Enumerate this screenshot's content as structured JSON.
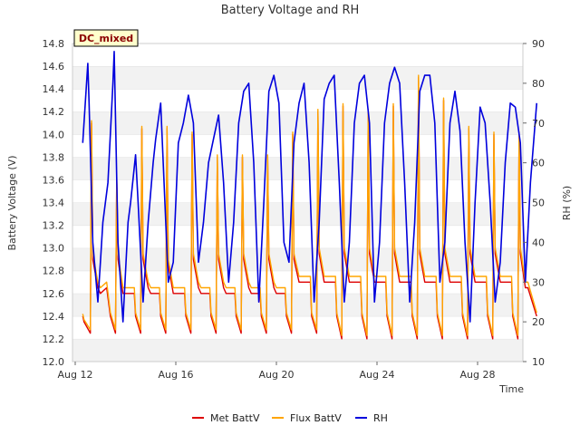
{
  "chart_data": {
    "type": "line",
    "title": "Battery Voltage and RH",
    "xlabel": "Time",
    "ylabel": "Battery Voltage (V)",
    "y2label": "RH (%)",
    "badge": "DC_mixed",
    "x_range_days": [
      0,
      18.6
    ],
    "ylim": [
      12.0,
      14.8
    ],
    "y2lim": [
      10,
      90
    ],
    "y_ticks": [
      "12.0",
      "12.2",
      "12.4",
      "12.6",
      "12.8",
      "13.0",
      "13.2",
      "13.4",
      "13.6",
      "13.8",
      "14.0",
      "14.2",
      "14.4",
      "14.6",
      "14.8"
    ],
    "y2_ticks": [
      "10",
      "20",
      "30",
      "40",
      "50",
      "60",
      "70",
      "80",
      "90"
    ],
    "x_ticks": [
      {
        "day": 0,
        "label": "Aug 12"
      },
      {
        "day": 4,
        "label": "Aug 16"
      },
      {
        "day": 8,
        "label": "Aug 20"
      },
      {
        "day": 12,
        "label": "Aug 24"
      },
      {
        "day": 16,
        "label": "Aug 28"
      }
    ],
    "series": [
      {
        "name": "Met BattV",
        "color": "#dd0000",
        "axis": "left",
        "x": [
          0.3,
          0.35,
          0.6,
          0.65,
          0.7,
          0.9,
          1.0,
          1.25,
          1.4,
          1.6,
          1.65,
          1.7,
          1.9,
          2.0,
          2.35,
          2.4,
          2.6,
          2.65,
          2.7,
          2.9,
          3.0,
          3.35,
          3.4,
          3.6,
          3.65,
          3.7,
          3.9,
          4.0,
          4.35,
          4.4,
          4.6,
          4.65,
          4.7,
          4.9,
          5.0,
          5.35,
          5.4,
          5.6,
          5.65,
          5.7,
          5.9,
          6.0,
          6.35,
          6.4,
          6.6,
          6.65,
          6.7,
          6.9,
          7.0,
          7.35,
          7.4,
          7.6,
          7.65,
          7.7,
          7.9,
          8.0,
          8.35,
          8.4,
          8.6,
          8.65,
          8.7,
          8.9,
          9.0,
          9.35,
          9.4,
          9.6,
          9.65,
          9.7,
          9.9,
          10.0,
          10.35,
          10.4,
          10.6,
          10.65,
          10.7,
          10.9,
          11.0,
          11.35,
          11.4,
          11.6,
          11.65,
          11.7,
          11.9,
          12.0,
          12.35,
          12.4,
          12.6,
          12.65,
          12.7,
          12.9,
          13.0,
          13.35,
          13.4,
          13.6,
          13.65,
          13.7,
          13.9,
          14.0,
          14.35,
          14.4,
          14.6,
          14.65,
          14.7,
          14.9,
          15.0,
          15.35,
          15.4,
          15.6,
          15.65,
          15.7,
          15.9,
          16.0,
          16.35,
          16.4,
          16.6,
          16.65,
          16.7,
          16.9,
          17.0,
          17.35,
          17.4,
          17.6,
          17.65,
          17.7,
          17.9,
          18.0,
          18.35
        ],
        "values": [
          12.4,
          12.35,
          12.25,
          14.1,
          12.9,
          12.65,
          12.6,
          12.65,
          12.4,
          12.25,
          13.6,
          12.9,
          12.6,
          12.6,
          12.6,
          12.4,
          12.25,
          14.05,
          12.9,
          12.65,
          12.6,
          12.6,
          12.4,
          12.25,
          14.05,
          12.85,
          12.6,
          12.6,
          12.6,
          12.4,
          12.25,
          14.0,
          12.9,
          12.65,
          12.6,
          12.6,
          12.4,
          12.25,
          13.8,
          12.9,
          12.65,
          12.6,
          12.6,
          12.4,
          12.25,
          13.8,
          12.9,
          12.65,
          12.6,
          12.6,
          12.4,
          12.25,
          13.8,
          12.9,
          12.65,
          12.6,
          12.6,
          12.4,
          12.25,
          14.0,
          12.9,
          12.7,
          12.7,
          12.7,
          12.4,
          12.25,
          14.2,
          12.95,
          12.7,
          12.7,
          12.7,
          12.4,
          12.2,
          14.25,
          12.95,
          12.7,
          12.7,
          12.7,
          12.4,
          12.2,
          14.2,
          12.95,
          12.7,
          12.7,
          12.7,
          12.4,
          12.2,
          14.25,
          12.95,
          12.7,
          12.7,
          12.7,
          12.4,
          12.2,
          14.5,
          12.95,
          12.7,
          12.7,
          12.7,
          12.4,
          12.2,
          14.3,
          12.95,
          12.7,
          12.7,
          12.7,
          12.4,
          12.2,
          14.05,
          12.95,
          12.7,
          12.7,
          12.7,
          12.4,
          12.2,
          14.0,
          12.95,
          12.7,
          12.7,
          12.7,
          12.4,
          12.2,
          14.0,
          12.95,
          12.65,
          12.65,
          12.4
        ]
      },
      {
        "name": "Flux BattV",
        "color": "#ffa500",
        "axis": "left",
        "x": [
          0.3,
          0.35,
          0.6,
          0.65,
          0.7,
          0.9,
          1.0,
          1.25,
          1.4,
          1.6,
          1.65,
          1.7,
          1.9,
          2.0,
          2.35,
          2.4,
          2.6,
          2.65,
          2.7,
          2.9,
          3.0,
          3.35,
          3.4,
          3.6,
          3.65,
          3.7,
          3.9,
          4.0,
          4.35,
          4.4,
          4.6,
          4.65,
          4.7,
          4.9,
          5.0,
          5.35,
          5.4,
          5.6,
          5.65,
          5.7,
          5.9,
          6.0,
          6.35,
          6.4,
          6.6,
          6.65,
          6.7,
          6.9,
          7.0,
          7.35,
          7.4,
          7.6,
          7.65,
          7.7,
          7.9,
          8.0,
          8.35,
          8.4,
          8.6,
          8.65,
          8.7,
          8.9,
          9.0,
          9.35,
          9.4,
          9.6,
          9.65,
          9.7,
          9.9,
          10.0,
          10.35,
          10.4,
          10.6,
          10.65,
          10.7,
          10.9,
          11.0,
          11.35,
          11.4,
          11.6,
          11.65,
          11.7,
          11.9,
          12.0,
          12.35,
          12.4,
          12.6,
          12.65,
          12.7,
          12.9,
          13.0,
          13.35,
          13.4,
          13.6,
          13.65,
          13.7,
          13.9,
          14.0,
          14.35,
          14.4,
          14.6,
          14.65,
          14.7,
          14.9,
          15.0,
          15.35,
          15.4,
          15.6,
          15.65,
          15.7,
          15.9,
          16.0,
          16.35,
          16.4,
          16.6,
          16.65,
          16.7,
          16.9,
          17.0,
          17.35,
          17.4,
          17.6,
          17.65,
          17.7,
          17.9,
          18.0,
          18.35
        ],
        "values": [
          12.42,
          12.37,
          12.28,
          14.12,
          12.95,
          12.7,
          12.65,
          12.7,
          12.43,
          12.28,
          13.62,
          12.95,
          12.65,
          12.65,
          12.65,
          12.43,
          12.28,
          14.07,
          12.95,
          12.7,
          12.65,
          12.65,
          12.43,
          12.28,
          14.07,
          12.9,
          12.65,
          12.65,
          12.65,
          12.43,
          12.28,
          14.02,
          12.95,
          12.7,
          12.65,
          12.65,
          12.43,
          12.28,
          13.82,
          12.95,
          12.7,
          12.65,
          12.65,
          12.43,
          12.28,
          13.82,
          12.95,
          12.7,
          12.65,
          12.65,
          12.43,
          12.28,
          13.82,
          12.95,
          12.7,
          12.65,
          12.65,
          12.43,
          12.28,
          14.02,
          12.95,
          12.75,
          12.75,
          12.75,
          12.43,
          12.28,
          14.22,
          13.0,
          12.75,
          12.75,
          12.75,
          12.43,
          12.23,
          14.27,
          13.0,
          12.75,
          12.75,
          12.75,
          12.43,
          12.23,
          14.22,
          13.0,
          12.75,
          12.75,
          12.75,
          12.43,
          12.23,
          14.27,
          13.0,
          12.75,
          12.75,
          12.75,
          12.43,
          12.23,
          14.52,
          13.0,
          12.75,
          12.75,
          12.75,
          12.43,
          12.23,
          14.32,
          13.0,
          12.75,
          12.75,
          12.75,
          12.43,
          12.23,
          14.07,
          13.0,
          12.75,
          12.75,
          12.75,
          12.43,
          12.23,
          14.02,
          13.0,
          12.75,
          12.75,
          12.75,
          12.43,
          12.23,
          14.02,
          13.0,
          12.7,
          12.7,
          12.43
        ]
      },
      {
        "name": "RH",
        "color": "#0000dd",
        "axis": "right",
        "x": [
          0.3,
          0.5,
          0.55,
          0.7,
          0.9,
          1.0,
          1.1,
          1.3,
          1.5,
          1.55,
          1.7,
          1.9,
          2.1,
          2.2,
          2.4,
          2.5,
          2.7,
          2.9,
          3.1,
          3.2,
          3.4,
          3.5,
          3.7,
          3.9,
          4.1,
          4.3,
          4.5,
          4.7,
          4.9,
          5.1,
          5.3,
          5.5,
          5.7,
          5.9,
          6.1,
          6.3,
          6.5,
          6.7,
          6.9,
          7.1,
          7.3,
          7.5,
          7.7,
          7.9,
          8.1,
          8.3,
          8.5,
          8.7,
          8.9,
          9.1,
          9.3,
          9.5,
          9.7,
          9.9,
          10.1,
          10.3,
          10.5,
          10.7,
          10.9,
          11.1,
          11.3,
          11.5,
          11.7,
          11.9,
          12.1,
          12.3,
          12.5,
          12.7,
          12.9,
          13.1,
          13.3,
          13.5,
          13.7,
          13.9,
          14.1,
          14.3,
          14.5,
          14.7,
          14.9,
          15.1,
          15.3,
          15.5,
          15.7,
          15.9,
          16.1,
          16.3,
          16.5,
          16.7,
          16.9,
          17.1,
          17.3,
          17.5,
          17.7,
          17.9,
          18.1,
          18.35
        ],
        "values": [
          65,
          85,
          75,
          40,
          25,
          35,
          45,
          55,
          80,
          88,
          40,
          20,
          45,
          50,
          62,
          50,
          25,
          45,
          60,
          66,
          75,
          60,
          30,
          35,
          65,
          70,
          77,
          70,
          35,
          45,
          60,
          66,
          72,
          55,
          30,
          45,
          70,
          78,
          80,
          60,
          25,
          50,
          78,
          82,
          75,
          40,
          35,
          65,
          75,
          80,
          60,
          25,
          45,
          76,
          80,
          82,
          55,
          25,
          40,
          70,
          80,
          82,
          70,
          25,
          40,
          70,
          80,
          84,
          80,
          55,
          25,
          45,
          78,
          82,
          82,
          70,
          30,
          40,
          70,
          78,
          68,
          40,
          20,
          50,
          74,
          70,
          50,
          25,
          35,
          60,
          75,
          74,
          65,
          30,
          55,
          75
        ]
      }
    ]
  }
}
